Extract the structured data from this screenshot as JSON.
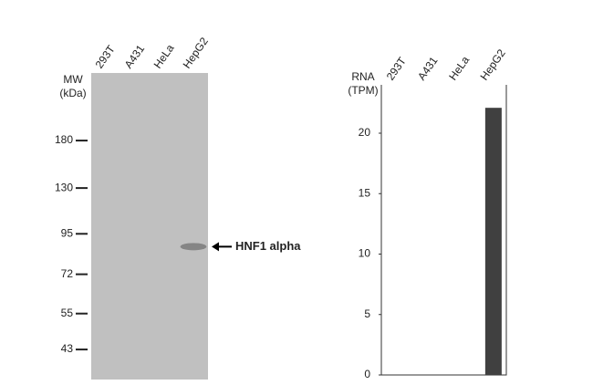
{
  "chart_data": [
    {
      "type": "blot",
      "categories": [
        "293T",
        "A431",
        "HeLa",
        "HepG2"
      ],
      "ylabel": [
        "MW",
        "(kDa)"
      ],
      "ylim": [
        35,
        286
      ],
      "yticks": [
        180,
        130,
        95,
        72,
        55,
        43
      ],
      "log_scale": true,
      "gel_color": "#c0c0c0",
      "bands": [
        {
          "lane": 3,
          "value": 87,
          "label": "HNF1 alpha",
          "color": "#858585"
        }
      ]
    },
    {
      "type": "bar",
      "categories": [
        "293T",
        "A431",
        "HeLa",
        "HepG2"
      ],
      "ylabel": [
        "RNA",
        "(TPM)"
      ],
      "values": [
        0,
        0,
        0,
        22.1
      ],
      "color": "#404040",
      "ylim": [
        0,
        24
      ],
      "yticks": [
        0,
        5,
        10,
        15,
        20
      ]
    }
  ]
}
